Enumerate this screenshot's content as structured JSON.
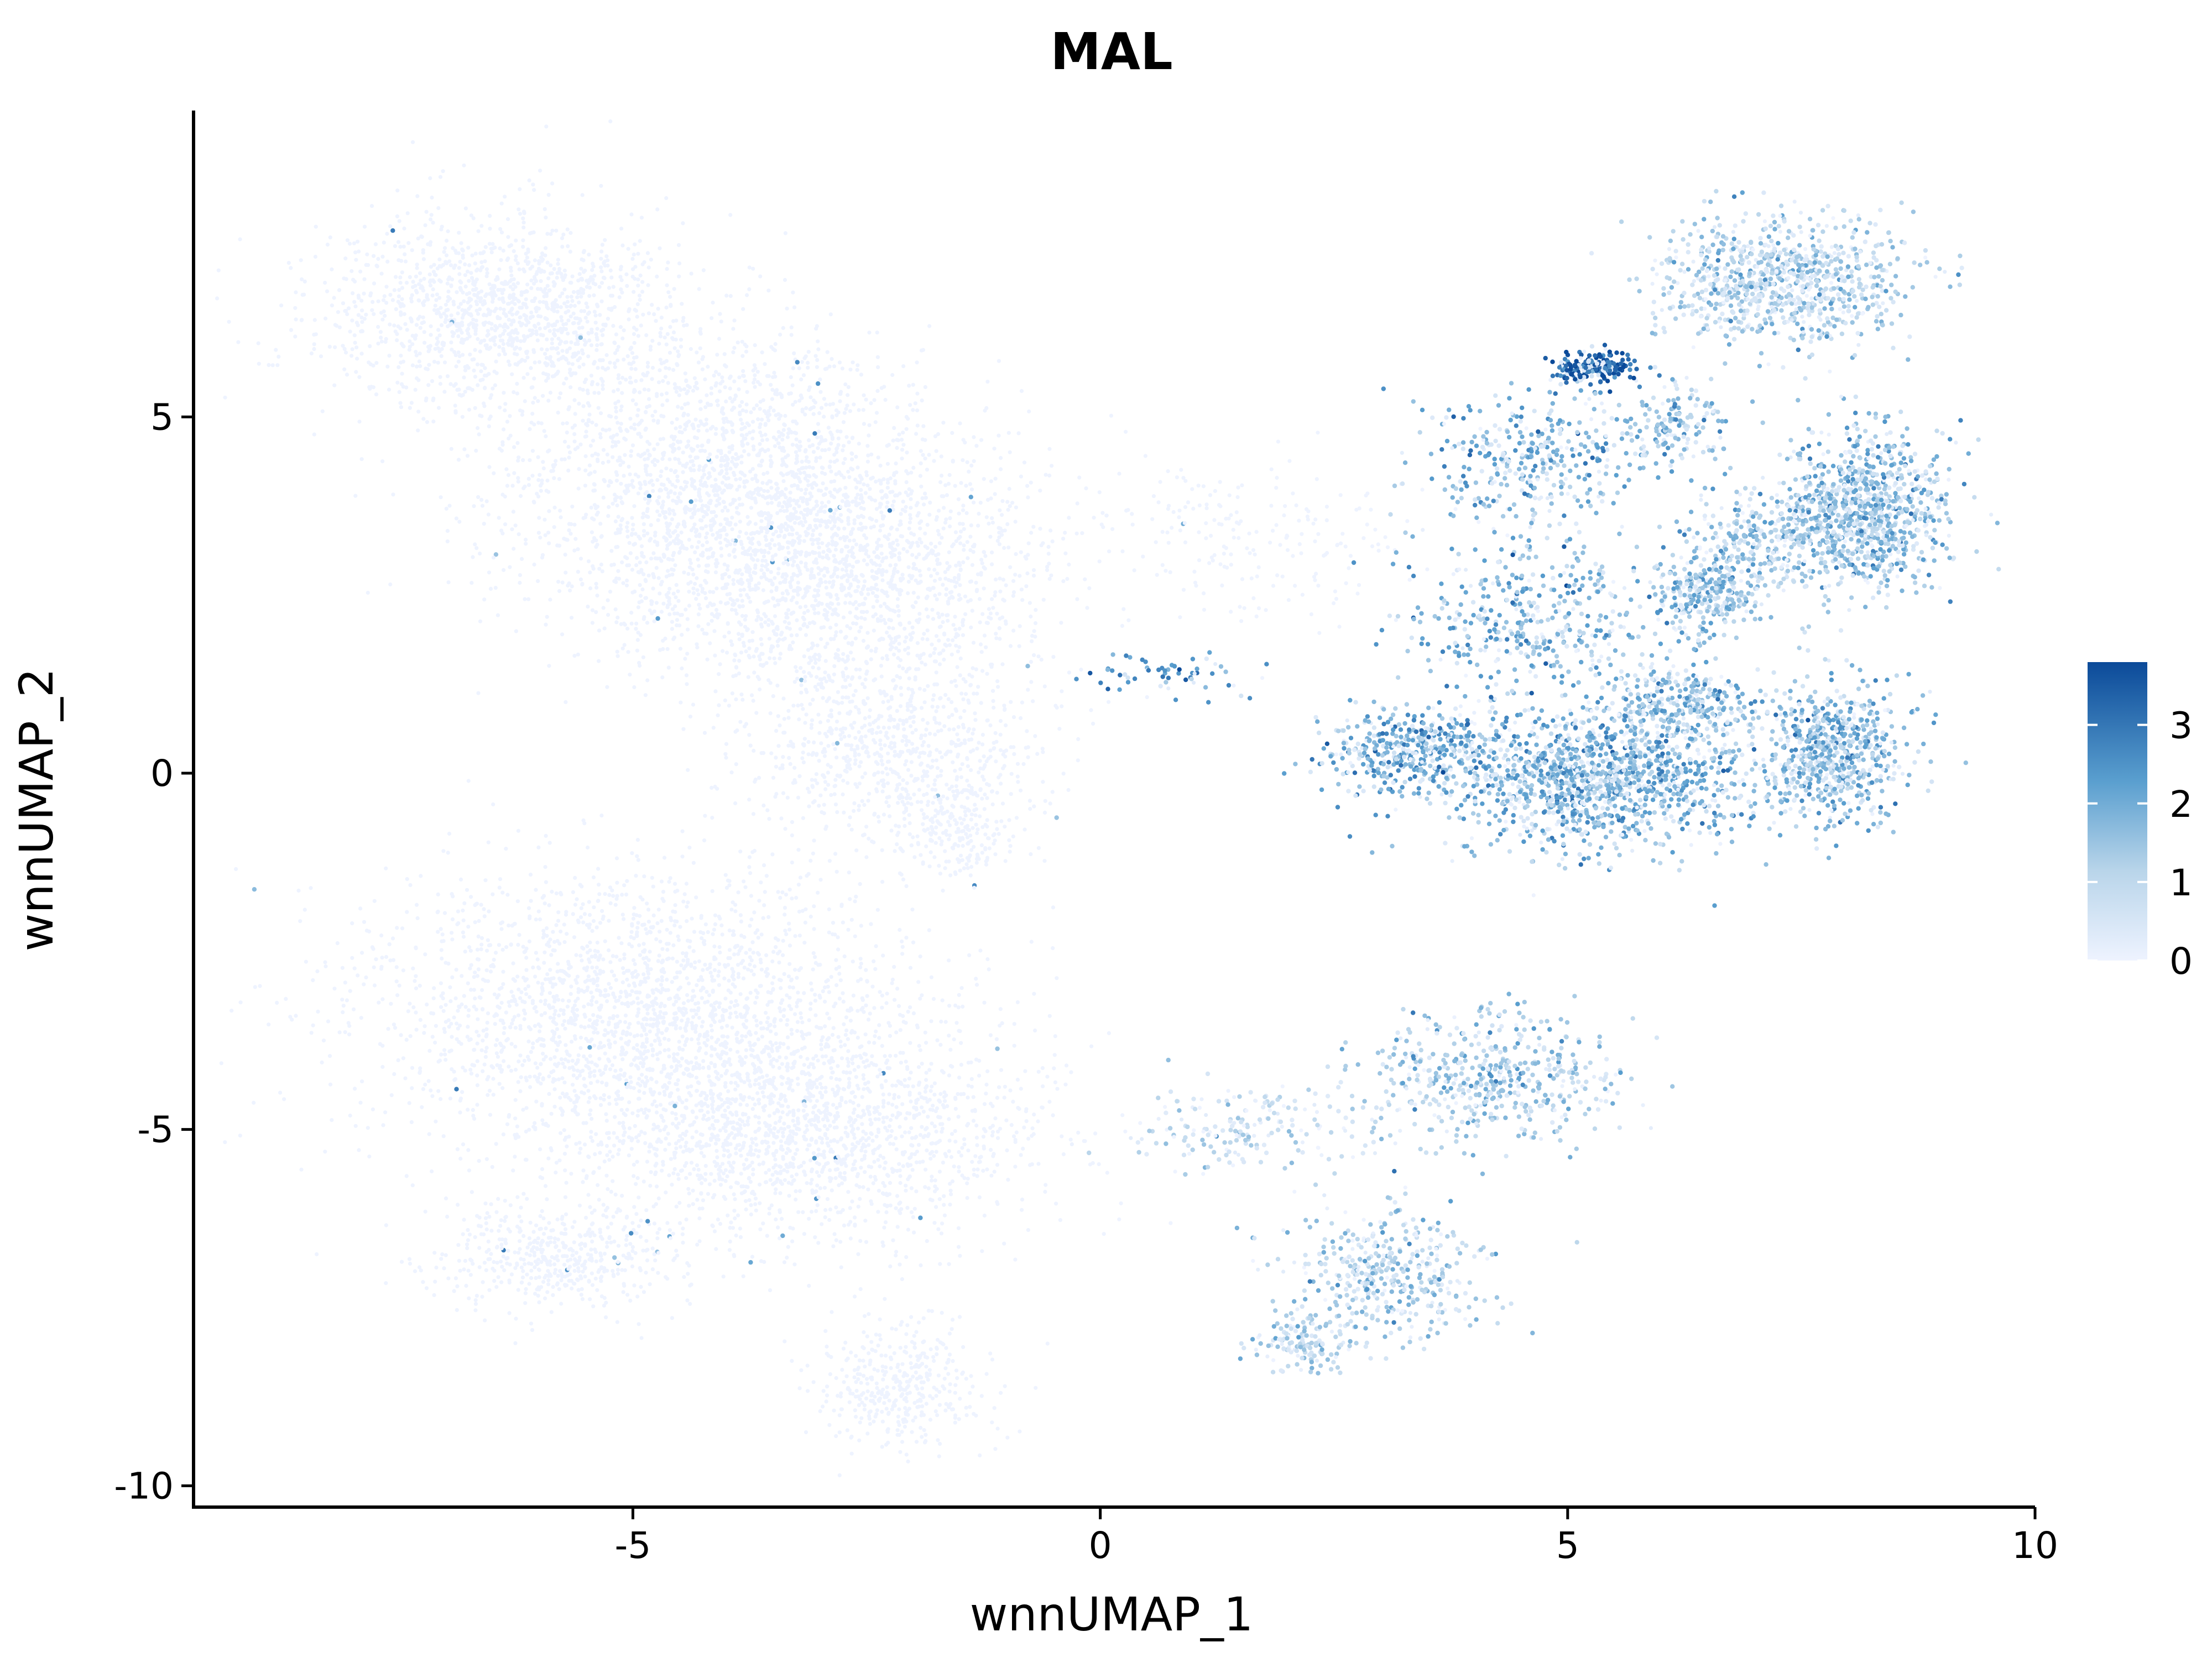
{
  "chart_data": {
    "type": "scatter",
    "title": "MAL",
    "xlabel": "wnnUMAP_1",
    "ylabel": "wnnUMAP_2",
    "xlim": [
      -9.7,
      10
    ],
    "ylim": [
      -10.3,
      9.3
    ],
    "x_ticks": [
      -5,
      0,
      5,
      10
    ],
    "x_tick_labels": [
      "-5",
      "0",
      "5",
      "10"
    ],
    "y_ticks": [
      -10,
      -5,
      0,
      5
    ],
    "y_tick_labels": [
      "-10",
      "-5",
      "0",
      "5"
    ],
    "color_scale": {
      "low": "#eef3ff",
      "high": "#0b4a99",
      "min": 0,
      "max": 3.8,
      "ticks": [
        0,
        1,
        2,
        3
      ],
      "tick_labels": [
        "0",
        "1",
        "2",
        "3"
      ]
    },
    "grid": false,
    "legend_position": "right",
    "clusters": [
      {
        "x": -6.4,
        "y": 6.5,
        "sx": 1.3,
        "sy": 0.9,
        "n": 1400,
        "expr": 0.0
      },
      {
        "x": -4.2,
        "y": 4.2,
        "sx": 1.6,
        "sy": 1.3,
        "n": 1800,
        "expr": 0.0
      },
      {
        "x": -2.8,
        "y": 2.8,
        "sx": 1.6,
        "sy": 1.2,
        "n": 1800,
        "expr": 0.0
      },
      {
        "x": -2.2,
        "y": 0.3,
        "sx": 1.0,
        "sy": 0.9,
        "n": 800,
        "expr": 0.0
      },
      {
        "x": -1.5,
        "y": -0.8,
        "sx": 0.4,
        "sy": 0.5,
        "n": 200,
        "expr": 0.0
      },
      {
        "x": 1.6,
        "y": 3.3,
        "sx": 1.2,
        "sy": 0.7,
        "n": 200,
        "expr": 0.0
      },
      {
        "x": -5.0,
        "y": -3.3,
        "sx": 2.0,
        "sy": 1.3,
        "n": 2200,
        "expr": 0.0
      },
      {
        "x": -3.2,
        "y": -5.0,
        "sx": 1.7,
        "sy": 1.1,
        "n": 1800,
        "expr": 0.0
      },
      {
        "x": -5.8,
        "y": -6.8,
        "sx": 0.9,
        "sy": 0.5,
        "n": 500,
        "expr": 0.0
      },
      {
        "x": -2.1,
        "y": -8.6,
        "sx": 0.6,
        "sy": 0.6,
        "n": 400,
        "expr": 0.0
      },
      {
        "x": 7.3,
        "y": 6.9,
        "sx": 0.9,
        "sy": 0.6,
        "n": 900,
        "expr": 1.2
      },
      {
        "x": 8.2,
        "y": 3.7,
        "sx": 0.6,
        "sy": 0.7,
        "n": 900,
        "expr": 1.6
      },
      {
        "x": 7.2,
        "y": 3.3,
        "sx": 0.6,
        "sy": 0.5,
        "n": 300,
        "expr": 1.5
      },
      {
        "x": 6.5,
        "y": 2.5,
        "sx": 0.4,
        "sy": 0.4,
        "n": 300,
        "expr": 1.7
      },
      {
        "x": 7.8,
        "y": 0.3,
        "sx": 0.5,
        "sy": 0.6,
        "n": 700,
        "expr": 1.7
      },
      {
        "x": 5.3,
        "y": 5.7,
        "sx": 0.3,
        "sy": 0.15,
        "n": 180,
        "expr": 3.5
      },
      {
        "x": 6.2,
        "y": 4.9,
        "sx": 0.4,
        "sy": 0.4,
        "n": 150,
        "expr": 1.6
      },
      {
        "x": 4.7,
        "y": 4.4,
        "sx": 0.8,
        "sy": 0.7,
        "n": 350,
        "expr": 1.9
      },
      {
        "x": 4.6,
        "y": 2.1,
        "sx": 0.9,
        "sy": 0.8,
        "n": 450,
        "expr": 1.8
      },
      {
        "x": 5.3,
        "y": -0.1,
        "sx": 1.1,
        "sy": 0.6,
        "n": 1300,
        "expr": 1.9
      },
      {
        "x": 3.3,
        "y": 0.3,
        "sx": 0.6,
        "sy": 0.4,
        "n": 400,
        "expr": 2.1
      },
      {
        "x": 6.2,
        "y": 1.0,
        "sx": 0.5,
        "sy": 0.4,
        "n": 300,
        "expr": 1.7
      },
      {
        "x": 4.2,
        "y": -4.3,
        "sx": 0.9,
        "sy": 0.6,
        "n": 500,
        "expr": 1.3
      },
      {
        "x": 3.1,
        "y": -7.0,
        "sx": 0.7,
        "sy": 0.6,
        "n": 400,
        "expr": 1.2
      },
      {
        "x": 2.2,
        "y": -8.0,
        "sx": 0.3,
        "sy": 0.3,
        "n": 150,
        "expr": 1.2
      },
      {
        "x": 1.6,
        "y": -5.0,
        "sx": 0.9,
        "sy": 0.4,
        "n": 200,
        "expr": 0.7
      },
      {
        "x": 0.8,
        "y": 1.4,
        "sx": 0.6,
        "sy": 0.2,
        "n": 60,
        "expr": 2.5
      }
    ]
  }
}
